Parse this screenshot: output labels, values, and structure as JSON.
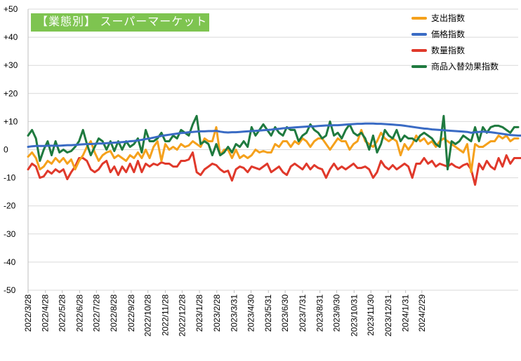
{
  "chart_data": {
    "type": "line",
    "title": "【業態別】 スーパーマーケット",
    "xlabel": "",
    "ylabel": "",
    "ylim": [
      -50,
      50
    ],
    "y_ticks": [
      "-50",
      "-40",
      "-30",
      "-20",
      "-10",
      "0",
      "+10",
      "+20",
      "+30",
      "+40",
      "+50"
    ],
    "grid": "horizontal",
    "legend_position": "top-right",
    "x_tick_labels": [
      "2022/3/28",
      "2022/4/28",
      "2022/5/28",
      "2022/6/28",
      "2022/7/28",
      "2022/8/28",
      "2022/9/28",
      "2022/10/28",
      "2022/11/28",
      "2022/12/28",
      "2023/1/28",
      "2023/2/28",
      "2023/3/31",
      "2023/4/30",
      "2023/5/31",
      "2023/6/30",
      "2023/7/31",
      "2023/8/31",
      "2023/9/30",
      "2023/10/31",
      "2023/11/30",
      "2023/12/31",
      "2024/1/31",
      "2024/2/29"
    ],
    "x_tick_weeks": [
      0,
      4.43,
      8.71,
      13.14,
      17.43,
      21.86,
      26.29,
      30.57,
      35,
      39.29,
      43.71,
      48.14,
      52.57,
      56.86,
      61.29,
      65.57,
      70,
      74.43,
      78.71,
      83.14,
      87.43,
      91.86,
      96.29,
      100.43
    ],
    "series": [
      {
        "name": "支出指数",
        "color": "#f5a11c",
        "values": [
          -2.5,
          -1,
          -3,
          -7,
          -6,
          -4,
          -5,
          -3,
          -4.5,
          -3,
          -5,
          -3.5,
          -7,
          -4,
          -2,
          1,
          3,
          -1,
          -4,
          -2,
          -1,
          -0.5,
          -3,
          -2,
          -3,
          -4,
          -2,
          -3,
          -1,
          -3,
          0,
          -3,
          1,
          3,
          -4,
          2,
          0,
          1,
          0,
          2,
          1,
          1.5,
          3,
          2,
          1,
          4,
          3,
          3,
          8,
          -2,
          0,
          0,
          -3,
          0,
          -3,
          -2,
          -3,
          -2,
          0,
          -1,
          -0.5,
          -1,
          -1,
          2,
          1,
          3,
          3,
          1,
          3,
          2,
          4,
          3,
          1,
          3,
          4,
          4,
          2,
          0,
          2,
          4,
          3,
          3,
          0,
          2,
          3,
          7,
          3,
          2,
          1,
          3,
          6,
          4,
          3,
          4,
          3,
          -2,
          2,
          0,
          2,
          5,
          3,
          4,
          2,
          3,
          1,
          3,
          4,
          3,
          2,
          1,
          0,
          -1,
          2,
          -8,
          2,
          1,
          1,
          2,
          3,
          3,
          5,
          4,
          5,
          3,
          4,
          4
        ]
      },
      {
        "name": "価格指数",
        "color": "#3a6bc4",
        "values": [
          1,
          1.2,
          1.3,
          1.3,
          1.3,
          1.4,
          1.4,
          1.4,
          1.4,
          1.5,
          1.6,
          1.6,
          1.7,
          1.8,
          1.9,
          2,
          2,
          2.1,
          2.2,
          2.2,
          2.3,
          2.4,
          2.5,
          2.6,
          2.7,
          2.8,
          3,
          3.1,
          3.3,
          3.5,
          3.8,
          4,
          4.3,
          4.6,
          4.9,
          5.1,
          5.3,
          5.5,
          5.7,
          5.9,
          6,
          6.2,
          6.3,
          6.4,
          6.5,
          6.5,
          6.6,
          6.6,
          6.7,
          6.4,
          6.2,
          6.1,
          6.2,
          6.2,
          6.3,
          6.4,
          6.5,
          6.6,
          6.7,
          6.8,
          6.9,
          7,
          7.1,
          7.3,
          7.4,
          7.6,
          7.7,
          7.8,
          7.9,
          8,
          8.1,
          8.2,
          8.3,
          8.3,
          8.4,
          8.5,
          8.6,
          8.6,
          8.7,
          8.7,
          8.8,
          8.9,
          9,
          9.1,
          9.2,
          9.2,
          9.3,
          9.3,
          9.3,
          9.2,
          9.2,
          9.1,
          9,
          8.9,
          8.8,
          8.7,
          8.5,
          8.3,
          8.1,
          7.9,
          7.7,
          7.5,
          7.4,
          7.2,
          7.1,
          7,
          6.9,
          6.8,
          6.7,
          6.6,
          6.5,
          6.4,
          6.3,
          6,
          6.2,
          6.3,
          6.4,
          6.3,
          6.2,
          6,
          5.8,
          5.6,
          5.4,
          5.2,
          5.1,
          5,
          5
        ]
      },
      {
        "name": "数量指数",
        "color": "#e0392b",
        "values": [
          -7,
          -5,
          -6,
          -10,
          -9.5,
          -7.5,
          -8.5,
          -7,
          -8,
          -7,
          -10.5,
          -8,
          -6,
          -3,
          -3,
          -4,
          -7,
          -8,
          -7,
          -5,
          -4,
          -8,
          -6,
          -9,
          -6,
          -8,
          -5,
          -8,
          -4,
          -8,
          -5,
          -6,
          -5,
          -5.5,
          -4.5,
          -5,
          -5,
          -6,
          -6,
          -4,
          -4,
          -3.5,
          -1,
          -8,
          -9,
          -7,
          -6,
          -5,
          -5.5,
          -7,
          -8,
          -7.5,
          -11,
          -7,
          -6,
          -6.5,
          -8,
          -6,
          -6.5,
          -7,
          -6,
          -5,
          -8,
          -7,
          -6,
          -8,
          -9,
          -6,
          -5,
          -6,
          -7,
          -5,
          -7,
          -5.5,
          -6.5,
          -7,
          -10,
          -7,
          -5,
          -7,
          -6,
          -7,
          -6,
          -5,
          -6.5,
          -6.5,
          -6,
          -7,
          -10,
          -8,
          -4,
          -6,
          -7,
          -5.5,
          -7,
          -6,
          -5,
          -6,
          -10,
          -5,
          -5,
          -3,
          -5,
          -4,
          -6,
          -5,
          -5.5,
          -6,
          -5,
          -6,
          -6.5,
          -5.5,
          -5,
          -7,
          -12.5,
          -5,
          -7,
          -4,
          -6,
          -7,
          -3,
          -6,
          -2,
          -5,
          -3,
          -3,
          -3
        ]
      },
      {
        "name": "商品入替効果指数",
        "color": "#1f7a3f",
        "values": [
          5,
          7,
          4,
          -4,
          0,
          3,
          -2,
          3,
          -1,
          0,
          -1,
          -0.5,
          1,
          3,
          7,
          2,
          -2,
          1,
          4,
          3,
          0,
          3,
          -0.5,
          3,
          0,
          3,
          1,
          2,
          4,
          -1,
          7,
          3,
          3,
          4,
          6,
          3,
          3,
          5,
          4,
          7,
          6,
          5,
          9,
          12,
          2,
          3,
          2,
          -2,
          2,
          -2,
          -1,
          1,
          -1,
          2,
          1,
          3,
          1,
          8,
          5,
          7,
          9,
          7,
          5,
          8,
          6,
          5,
          8,
          7,
          7,
          3,
          5,
          6,
          9,
          7,
          6,
          4,
          5,
          10,
          5,
          6,
          4,
          7,
          9,
          6,
          5,
          6,
          4,
          0,
          5,
          -1,
          2,
          7,
          5,
          4,
          7,
          3,
          5,
          4,
          4,
          3,
          5,
          6,
          5,
          4,
          2,
          1,
          12,
          -7,
          3,
          2,
          3,
          5,
          4,
          3,
          8,
          3,
          8,
          6,
          8,
          8.5,
          8.5,
          8,
          7,
          6,
          8,
          8
        ]
      }
    ]
  }
}
